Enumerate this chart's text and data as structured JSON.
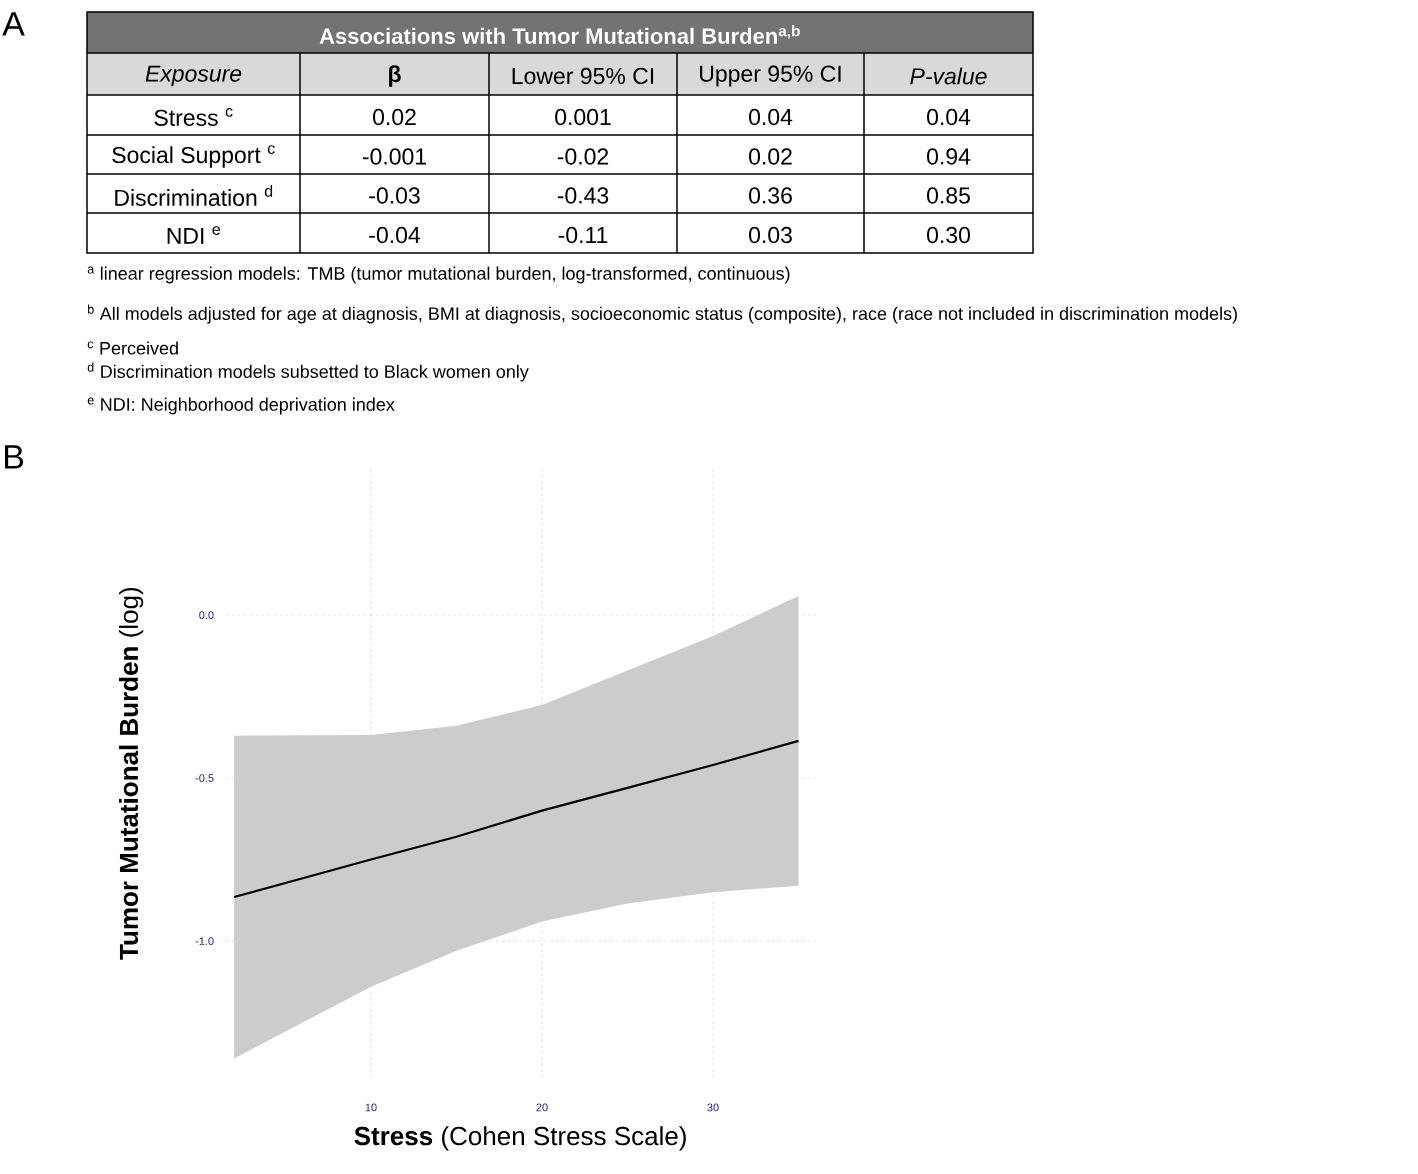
{
  "chart_data": [
    {
      "type": "other",
      "title": "Associations with Tumor Mutational Burden$^{a,b}$",
      "annotations": [
        "A",
        "Exposure",
        "β",
        "Lower 95% CI",
        "Upper 95% CI",
        "P-value",
        "Stress $^{c}$",
        "0.02",
        "0.001",
        "0.04",
        "0.04",
        "Social Support $^{c}$",
        "-0.001",
        "-0.02",
        "0.02",
        "0.94",
        "Discrimination $^{d}$",
        "-0.03",
        "-0.43",
        "0.36",
        "0.85",
        "NDI $^{e}$",
        "-0.04",
        "-0.11",
        "0.03",
        "0.30",
        "$^{a}$ linear regression models: TMB (tumor mutational burden, log-transformed, continuous)",
        "$^{b}$ All models adjusted for age at diagnosis, BMI at diagnosis, socioeconomic status (composite), race (race not included in discrimination models)",
        "$^{c}$ Perceived",
        "$^{d}$ Discrimination models subsetted to Black women only",
        "$^{e}$ NDI: Neighborhood deprivation index"
      ]
    },
    {
      "type": "line",
      "xlabel": "**Stress** (Cohen Stress Scale)",
      "ylabel": "**Tumor Mutational Burden** (log)",
      "annotations": [
        "B"
      ],
      "xlim": [
        1.5,
        36
      ],
      "ylim": [
        -1.42,
        0.45
      ],
      "xticks": [
        10,
        20,
        30
      ],
      "yticks": [
        {
          "value": -1.0,
          "label": "-1.0"
        },
        {
          "value": -0.5,
          "label": "-0.5"
        },
        {
          "value": 0.0,
          "label": "0.0"
        }
      ],
      "grid": true,
      "series": [
        {
          "color": "#000000",
          "x": [
            2,
            10,
            15,
            20,
            25,
            30,
            35
          ],
          "values": [
            -0.865,
            -0.75,
            -0.68,
            -0.6,
            -0.53,
            -0.46,
            -0.386
          ],
          "lower": [
            -1.36,
            -1.14,
            -1.03,
            -0.94,
            -0.885,
            -0.85,
            -0.83
          ],
          "upper": [
            -0.37,
            -0.368,
            -0.34,
            -0.276,
            -0.17,
            -0.064,
            0.058
          ]
        }
      ]
    }
  ]
}
